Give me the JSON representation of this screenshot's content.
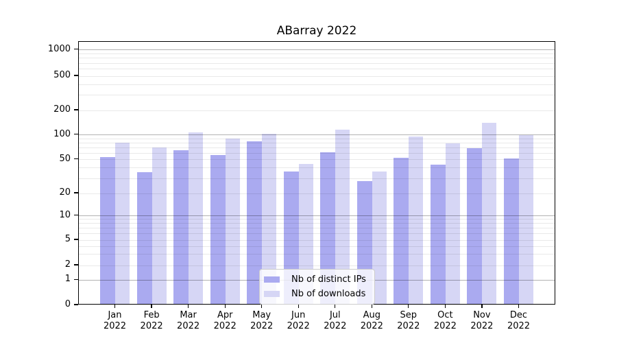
{
  "chart_data": {
    "type": "bar",
    "title": "ABarray 2022",
    "categories": [
      "Jan 2022",
      "Feb 2022",
      "Mar 2022",
      "Apr 2022",
      "May 2022",
      "Jun 2022",
      "Jul 2022",
      "Aug 2022",
      "Sep 2022",
      "Oct 2022",
      "Nov 2022",
      "Dec 2022"
    ],
    "series": [
      {
        "name": "Nb of distinct IPs",
        "color": "#aaaaf0",
        "values": [
          52,
          34,
          63,
          55,
          80,
          35,
          59,
          27,
          51,
          42,
          66,
          50
        ]
      },
      {
        "name": "Nb of downloads",
        "color": "#d6d6f5",
        "values": [
          78,
          68,
          103,
          87,
          99,
          43,
          111,
          35,
          93,
          76,
          137,
          96
        ]
      }
    ],
    "xlabel": "",
    "ylabel": "",
    "y_ticks": [
      0,
      1,
      2,
      5,
      10,
      20,
      50,
      100,
      200,
      500,
      1000
    ],
    "ylim": [
      0,
      1300
    ],
    "yscale": {
      "type": "symlog-like",
      "anchors": [
        [
          0,
          0.0
        ],
        [
          1,
          0.0956
        ],
        [
          2,
          0.151
        ],
        [
          5,
          0.2474
        ],
        [
          10,
          0.3398
        ],
        [
          20,
          0.4245
        ],
        [
          50,
          0.5529
        ],
        [
          100,
          0.6466
        ],
        [
          200,
          0.7396
        ],
        [
          500,
          0.8698
        ],
        [
          1000,
          0.97
        ]
      ]
    },
    "grid": {
      "major_values": [
        1,
        10,
        100,
        1000
      ],
      "minor_values": [
        2,
        3,
        4,
        5,
        6,
        7,
        8,
        9,
        20,
        30,
        40,
        50,
        60,
        70,
        80,
        90,
        200,
        300,
        400,
        500,
        600,
        700,
        800,
        900
      ],
      "major_color": "rgba(0,0,0,0.30)",
      "minor_color": "rgba(0,0,0,0.085)"
    },
    "legend": {
      "position": "lower center"
    }
  }
}
